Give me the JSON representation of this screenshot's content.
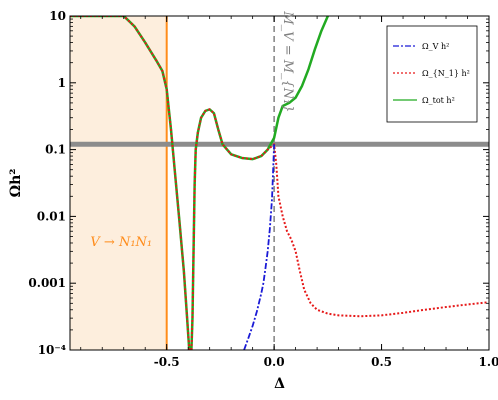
{
  "chart_data": {
    "type": "line",
    "title": "",
    "xlabel": "Δ",
    "ylabel": "Ωh²",
    "xlim": [
      -0.95,
      1.0
    ],
    "ylim": [
      0.0001,
      10
    ],
    "yscale": "log",
    "grid": false,
    "legend_position": "top-right",
    "x_ticks": [
      {
        "value": -0.5,
        "label": "-0.5"
      },
      {
        "value": 0.0,
        "label": "0.0"
      },
      {
        "value": 0.5,
        "label": "0.5"
      },
      {
        "value": 1.0,
        "label": "1.0"
      }
    ],
    "y_ticks": [
      {
        "value": 0.0001,
        "label": "10⁻⁴"
      },
      {
        "value": 0.001,
        "label": "0.001"
      },
      {
        "value": 0.01,
        "label": "0.01"
      },
      {
        "value": 0.1,
        "label": "0.1"
      },
      {
        "value": 1,
        "label": "1"
      },
      {
        "value": 10,
        "label": "10"
      }
    ],
    "series": [
      {
        "name": "Ω_V h²",
        "color": "#1a1ad6",
        "dash": "dashdot",
        "points": [
          [
            -0.14,
            0.0001
          ],
          [
            -0.12,
            0.00015
          ],
          [
            -0.1,
            0.00023
          ],
          [
            -0.08,
            0.00038
          ],
          [
            -0.06,
            0.0007
          ],
          [
            -0.05,
            0.001
          ],
          [
            -0.04,
            0.0017
          ],
          [
            -0.03,
            0.003
          ],
          [
            -0.02,
            0.0065
          ],
          [
            -0.01,
            0.018
          ],
          [
            -0.005,
            0.045
          ],
          [
            0.0,
            0.12
          ]
        ]
      },
      {
        "name": "Ω_{N_1} h²",
        "color": "#e61919",
        "dash": "dotted",
        "points": [
          [
            -0.95,
            10
          ],
          [
            -0.9,
            10
          ],
          [
            -0.85,
            10
          ],
          [
            -0.8,
            10
          ],
          [
            -0.75,
            10
          ],
          [
            -0.7,
            10
          ],
          [
            -0.65,
            7
          ],
          [
            -0.6,
            4
          ],
          [
            -0.55,
            2.2
          ],
          [
            -0.52,
            1.5
          ],
          [
            -0.5,
            0.8
          ],
          [
            -0.48,
            0.2
          ],
          [
            -0.46,
            0.04
          ],
          [
            -0.44,
            0.008
          ],
          [
            -0.42,
            0.0015
          ],
          [
            -0.405,
            0.0003
          ],
          [
            -0.395,
            0.0001
          ],
          [
            -0.385,
            0.0001
          ],
          [
            -0.38,
            0.0003
          ],
          [
            -0.375,
            0.003
          ],
          [
            -0.37,
            0.03
          ],
          [
            -0.365,
            0.1
          ],
          [
            -0.355,
            0.18
          ],
          [
            -0.34,
            0.3
          ],
          [
            -0.32,
            0.38
          ],
          [
            -0.3,
            0.4
          ],
          [
            -0.28,
            0.35
          ],
          [
            -0.26,
            0.2
          ],
          [
            -0.24,
            0.12
          ],
          [
            -0.2,
            0.085
          ],
          [
            -0.15,
            0.075
          ],
          [
            -0.1,
            0.072
          ],
          [
            -0.06,
            0.08
          ],
          [
            -0.03,
            0.1
          ],
          [
            0.0,
            0.12
          ],
          [
            0.01,
            0.06
          ],
          [
            0.02,
            0.02
          ],
          [
            0.04,
            0.01
          ],
          [
            0.06,
            0.006
          ],
          [
            0.08,
            0.0045
          ],
          [
            0.1,
            0.003
          ],
          [
            0.12,
            0.0015
          ],
          [
            0.14,
            0.0008
          ],
          [
            0.17,
            0.0005
          ],
          [
            0.2,
            0.0004
          ],
          [
            0.25,
            0.00035
          ],
          [
            0.3,
            0.00033
          ],
          [
            0.4,
            0.00032
          ],
          [
            0.5,
            0.00033
          ],
          [
            0.6,
            0.00036
          ],
          [
            0.7,
            0.0004
          ],
          [
            0.8,
            0.00044
          ],
          [
            0.9,
            0.00048
          ],
          [
            1.0,
            0.00052
          ]
        ]
      },
      {
        "name": "Ω_tot h²",
        "color": "#22aa22",
        "dash": "solid",
        "points": [
          [
            -0.95,
            10
          ],
          [
            -0.9,
            10
          ],
          [
            -0.85,
            10
          ],
          [
            -0.8,
            10
          ],
          [
            -0.75,
            10
          ],
          [
            -0.7,
            10
          ],
          [
            -0.65,
            7
          ],
          [
            -0.6,
            4
          ],
          [
            -0.55,
            2.2
          ],
          [
            -0.52,
            1.5
          ],
          [
            -0.5,
            0.8
          ],
          [
            -0.48,
            0.2
          ],
          [
            -0.46,
            0.04
          ],
          [
            -0.44,
            0.008
          ],
          [
            -0.42,
            0.0015
          ],
          [
            -0.405,
            0.0003
          ],
          [
            -0.395,
            0.0001
          ],
          [
            -0.385,
            0.0001
          ],
          [
            -0.38,
            0.0003
          ],
          [
            -0.375,
            0.003
          ],
          [
            -0.37,
            0.03
          ],
          [
            -0.365,
            0.1
          ],
          [
            -0.355,
            0.18
          ],
          [
            -0.34,
            0.3
          ],
          [
            -0.32,
            0.38
          ],
          [
            -0.3,
            0.4
          ],
          [
            -0.28,
            0.35
          ],
          [
            -0.26,
            0.2
          ],
          [
            -0.24,
            0.12
          ],
          [
            -0.2,
            0.085
          ],
          [
            -0.15,
            0.075
          ],
          [
            -0.1,
            0.072
          ],
          [
            -0.06,
            0.08
          ],
          [
            -0.03,
            0.1
          ],
          [
            0.0,
            0.15
          ],
          [
            0.02,
            0.3
          ],
          [
            0.04,
            0.45
          ],
          [
            0.07,
            0.5
          ],
          [
            0.1,
            0.6
          ],
          [
            0.13,
            0.9
          ],
          [
            0.16,
            1.6
          ],
          [
            0.19,
            3.2
          ],
          [
            0.22,
            6
          ],
          [
            0.25,
            10
          ]
        ]
      }
    ],
    "annotations": [
      {
        "kind": "vline",
        "x": -0.5,
        "color": "#ff8c1a",
        "label": "V → N₁N₁"
      },
      {
        "kind": "vline",
        "x": 0.0,
        "color": "#808080",
        "dash": "dashed",
        "label": "M_V = M_{N₁}"
      },
      {
        "kind": "hline",
        "y": 0.12,
        "color": "#8c8c8c"
      },
      {
        "kind": "shaded_region",
        "x_from": -0.95,
        "x_to": -0.5,
        "color": "#fdeedd"
      }
    ],
    "legend_entries": [
      "Ω_V h²",
      "Ω_{N_1} h²",
      "Ω_tot h²"
    ]
  }
}
